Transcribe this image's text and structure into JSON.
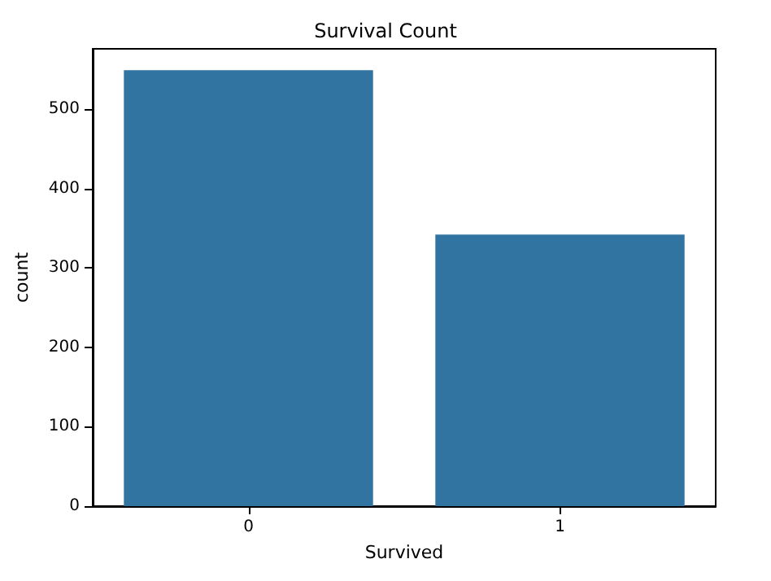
{
  "chart_data": {
    "type": "bar",
    "title": "Survival Count",
    "xlabel": "Survived",
    "ylabel": "count",
    "categories": [
      "0",
      "1"
    ],
    "series": [
      {
        "color": "#3274a1",
        "values": [
          549,
          342
        ]
      }
    ],
    "ylim": [
      0,
      576
    ],
    "yticks": [
      0,
      100,
      200,
      300,
      400,
      500
    ],
    "grid": false
  }
}
